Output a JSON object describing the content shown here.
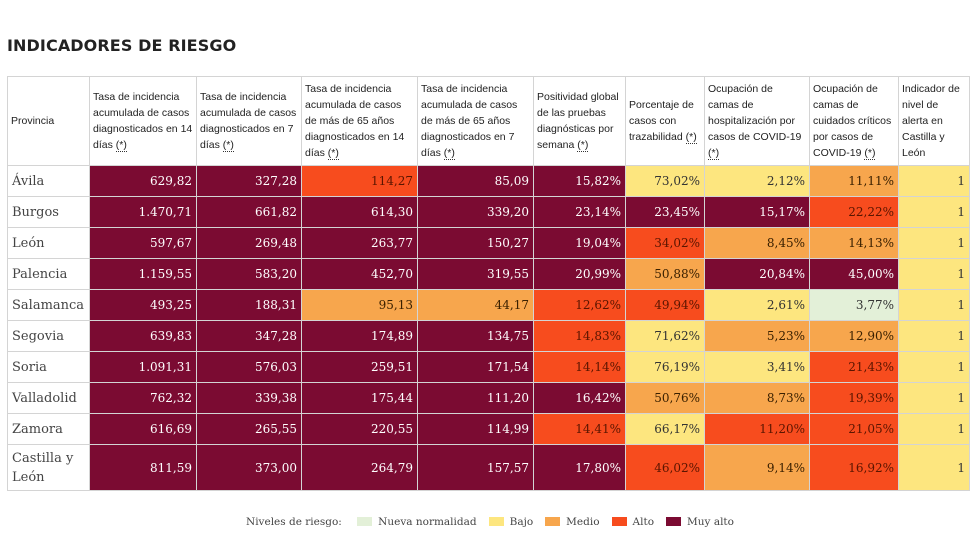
{
  "title": "INDICADORES DE RIESGO",
  "note_marker": "(*)",
  "headers": [
    {
      "text": "Provincia",
      "note": false
    },
    {
      "text": "Tasa de incidencia acumulada de casos diagnosticados en 14 días",
      "note": true
    },
    {
      "text": "Tasa de incidencia acumulada de casos diagnosticados en 7 días",
      "note": true
    },
    {
      "text": "Tasa de incidencia acumulada de casos de más de 65 años diagnosticados en 14 días",
      "note": true
    },
    {
      "text": "Tasa de incidencia acumulada de casos de más de 65 años diagnosticados en 7 días",
      "note": true
    },
    {
      "text": "Positividad global de las pruebas diagnósticas por semana",
      "note": true
    },
    {
      "text": "Porcentaje de casos con trazabilidad",
      "note": true
    },
    {
      "text": "Ocupación de camas de hospitalización por casos de COVID-19",
      "note": true
    },
    {
      "text": "Ocupación de camas de cuidados críticos por casos de COVID-19",
      "note": true
    },
    {
      "text": "Indicador de nivel de alerta en Castilla y León",
      "note": false
    }
  ],
  "rows": [
    {
      "provincia": "Ávila",
      "cells": [
        {
          "v": "629,82",
          "l": "muyalto"
        },
        {
          "v": "327,28",
          "l": "muyalto"
        },
        {
          "v": "114,27",
          "l": "alto"
        },
        {
          "v": "85,09",
          "l": "muyalto"
        },
        {
          "v": "15,82%",
          "l": "muyalto"
        },
        {
          "v": "73,02%",
          "l": "bajo"
        },
        {
          "v": "2,12%",
          "l": "bajo"
        },
        {
          "v": "11,11%",
          "l": "medio"
        },
        {
          "v": "1",
          "l": "bajo"
        }
      ]
    },
    {
      "provincia": "Burgos",
      "cells": [
        {
          "v": "1.470,71",
          "l": "muyalto"
        },
        {
          "v": "661,82",
          "l": "muyalto"
        },
        {
          "v": "614,30",
          "l": "muyalto"
        },
        {
          "v": "339,20",
          "l": "muyalto"
        },
        {
          "v": "23,14%",
          "l": "muyalto"
        },
        {
          "v": "23,45%",
          "l": "muyalto"
        },
        {
          "v": "15,17%",
          "l": "muyalto"
        },
        {
          "v": "22,22%",
          "l": "alto"
        },
        {
          "v": "1",
          "l": "bajo"
        }
      ]
    },
    {
      "provincia": "León",
      "cells": [
        {
          "v": "597,67",
          "l": "muyalto"
        },
        {
          "v": "269,48",
          "l": "muyalto"
        },
        {
          "v": "263,77",
          "l": "muyalto"
        },
        {
          "v": "150,27",
          "l": "muyalto"
        },
        {
          "v": "19,04%",
          "l": "muyalto"
        },
        {
          "v": "34,02%",
          "l": "alto"
        },
        {
          "v": "8,45%",
          "l": "medio"
        },
        {
          "v": "14,13%",
          "l": "medio"
        },
        {
          "v": "1",
          "l": "bajo"
        }
      ]
    },
    {
      "provincia": "Palencia",
      "cells": [
        {
          "v": "1.159,55",
          "l": "muyalto"
        },
        {
          "v": "583,20",
          "l": "muyalto"
        },
        {
          "v": "452,70",
          "l": "muyalto"
        },
        {
          "v": "319,55",
          "l": "muyalto"
        },
        {
          "v": "20,99%",
          "l": "muyalto"
        },
        {
          "v": "50,88%",
          "l": "medio"
        },
        {
          "v": "20,84%",
          "l": "muyalto"
        },
        {
          "v": "45,00%",
          "l": "muyalto"
        },
        {
          "v": "1",
          "l": "bajo"
        }
      ]
    },
    {
      "provincia": "Salamanca",
      "cells": [
        {
          "v": "493,25",
          "l": "muyalto"
        },
        {
          "v": "188,31",
          "l": "muyalto"
        },
        {
          "v": "95,13",
          "l": "medio"
        },
        {
          "v": "44,17",
          "l": "medio"
        },
        {
          "v": "12,62%",
          "l": "alto"
        },
        {
          "v": "49,94%",
          "l": "alto"
        },
        {
          "v": "2,61%",
          "l": "bajo"
        },
        {
          "v": "3,77%",
          "l": "nueva"
        },
        {
          "v": "1",
          "l": "bajo"
        }
      ]
    },
    {
      "provincia": "Segovia",
      "cells": [
        {
          "v": "639,83",
          "l": "muyalto"
        },
        {
          "v": "347,28",
          "l": "muyalto"
        },
        {
          "v": "174,89",
          "l": "muyalto"
        },
        {
          "v": "134,75",
          "l": "muyalto"
        },
        {
          "v": "14,83%",
          "l": "alto"
        },
        {
          "v": "71,62%",
          "l": "bajo"
        },
        {
          "v": "5,23%",
          "l": "medio"
        },
        {
          "v": "12,90%",
          "l": "medio"
        },
        {
          "v": "1",
          "l": "bajo"
        }
      ]
    },
    {
      "provincia": "Soria",
      "cells": [
        {
          "v": "1.091,31",
          "l": "muyalto"
        },
        {
          "v": "576,03",
          "l": "muyalto"
        },
        {
          "v": "259,51",
          "l": "muyalto"
        },
        {
          "v": "171,54",
          "l": "muyalto"
        },
        {
          "v": "14,14%",
          "l": "alto"
        },
        {
          "v": "76,19%",
          "l": "bajo"
        },
        {
          "v": "3,41%",
          "l": "bajo"
        },
        {
          "v": "21,43%",
          "l": "alto"
        },
        {
          "v": "1",
          "l": "bajo"
        }
      ]
    },
    {
      "provincia": "Valladolid",
      "cells": [
        {
          "v": "762,32",
          "l": "muyalto"
        },
        {
          "v": "339,38",
          "l": "muyalto"
        },
        {
          "v": "175,44",
          "l": "muyalto"
        },
        {
          "v": "111,20",
          "l": "muyalto"
        },
        {
          "v": "16,42%",
          "l": "muyalto"
        },
        {
          "v": "50,76%",
          "l": "medio"
        },
        {
          "v": "8,73%",
          "l": "medio"
        },
        {
          "v": "19,39%",
          "l": "alto"
        },
        {
          "v": "1",
          "l": "bajo"
        }
      ]
    },
    {
      "provincia": "Zamora",
      "cells": [
        {
          "v": "616,69",
          "l": "muyalto"
        },
        {
          "v": "265,55",
          "l": "muyalto"
        },
        {
          "v": "220,55",
          "l": "muyalto"
        },
        {
          "v": "114,99",
          "l": "muyalto"
        },
        {
          "v": "14,41%",
          "l": "alto"
        },
        {
          "v": "66,17%",
          "l": "bajo"
        },
        {
          "v": "11,20%",
          "l": "alto"
        },
        {
          "v": "21,05%",
          "l": "alto"
        },
        {
          "v": "1",
          "l": "bajo"
        }
      ]
    },
    {
      "provincia": "Castilla y León",
      "cells": [
        {
          "v": "811,59",
          "l": "muyalto"
        },
        {
          "v": "373,00",
          "l": "muyalto"
        },
        {
          "v": "264,79",
          "l": "muyalto"
        },
        {
          "v": "157,57",
          "l": "muyalto"
        },
        {
          "v": "17,80%",
          "l": "muyalto"
        },
        {
          "v": "46,02%",
          "l": "alto"
        },
        {
          "v": "9,14%",
          "l": "medio"
        },
        {
          "v": "16,92%",
          "l": "alto"
        },
        {
          "v": "1",
          "l": "bajo"
        }
      ]
    }
  ],
  "legend": {
    "label": "Niveles de riesgo:",
    "items": [
      {
        "key": "nueva",
        "label": "Nueva normalidad",
        "color": "#e3f0d8"
      },
      {
        "key": "bajo",
        "label": "Bajo",
        "color": "#fde67f"
      },
      {
        "key": "medio",
        "label": "Medio",
        "color": "#f7a64d"
      },
      {
        "key": "alto",
        "label": "Alto",
        "color": "#f74c1e"
      },
      {
        "key": "muyalto",
        "label": "Muy alto",
        "color": "#7b0b32"
      }
    ]
  }
}
